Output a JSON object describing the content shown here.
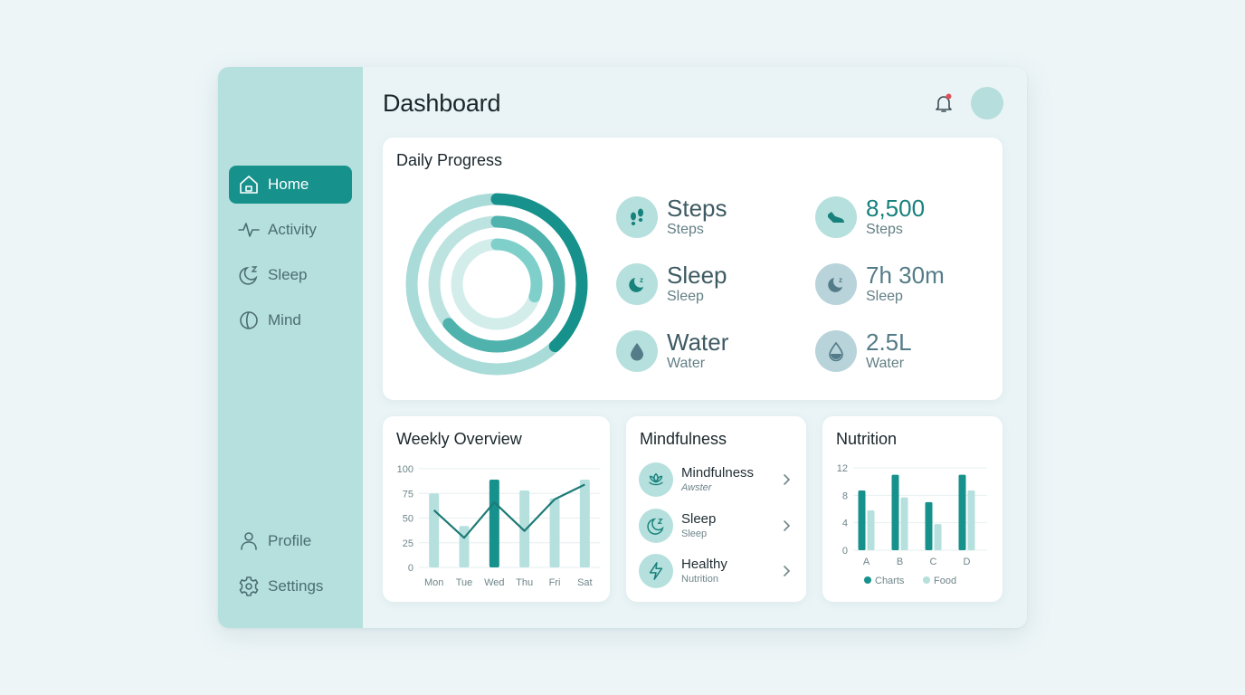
{
  "header": {
    "title": "Dashboard",
    "notification_badge_color": "#e0505a"
  },
  "sidebar": {
    "items": [
      {
        "label": "Home",
        "icon": "home-icon",
        "active": true
      },
      {
        "label": "Activity",
        "icon": "activity-icon",
        "active": false
      },
      {
        "label": "Sleep",
        "icon": "moon-icon",
        "active": false
      },
      {
        "label": "Mind",
        "icon": "brain-icon",
        "active": false
      }
    ],
    "bottom_items": [
      {
        "label": "Profile",
        "icon": "user-icon"
      },
      {
        "label": "Settings",
        "icon": "gear-icon"
      }
    ]
  },
  "daily_progress": {
    "title": "Daily Progress",
    "rings": [
      {
        "name": "outer",
        "percent": 38,
        "color": "#17918c",
        "track": "#a9dbd8"
      },
      {
        "name": "middle",
        "percent": 64,
        "color": "#4fb2ad",
        "track": "#bde3e0"
      },
      {
        "name": "inner",
        "percent": 30,
        "color": "#7fd0cb",
        "track": "#d3edeb"
      }
    ],
    "metrics_left": [
      {
        "title": "Steps",
        "subtitle": "Steps",
        "icon": "footprints-icon"
      },
      {
        "title": "Sleep",
        "subtitle": "Sleep",
        "icon": "moon-icon"
      },
      {
        "title": "Water",
        "subtitle": "Water",
        "icon": "water-drop-icon"
      }
    ],
    "metrics_right": [
      {
        "value": "8,500",
        "label": "Steps",
        "icon": "shoe-icon"
      },
      {
        "value": "7h 30m",
        "label": "Sleep",
        "icon": "moon-icon"
      },
      {
        "value": "2.5L",
        "label": "Water",
        "icon": "water-drop-icon"
      }
    ]
  },
  "weekly_overview": {
    "title": "Weekly Overview"
  },
  "mindfulness": {
    "title": "Mindfulness",
    "items": [
      {
        "title": "Mindfulness",
        "subtitle": "Awster",
        "icon": "lotus-icon"
      },
      {
        "title": "Sleep",
        "subtitle": "Sleep",
        "icon": "moon-icon"
      },
      {
        "title": "Healthy",
        "subtitle": "Nutrition",
        "icon": "lightning-icon"
      }
    ]
  },
  "nutrition": {
    "title": "Nutrition"
  },
  "chart_data": [
    {
      "id": "weekly",
      "type": "bar",
      "title": "Weekly Overview",
      "categories": [
        "Mon",
        "Tue",
        "Wed",
        "Thu",
        "Fri",
        "Sat"
      ],
      "series": [
        {
          "name": "bars",
          "type": "bar",
          "values": [
            75,
            42,
            89,
            78,
            70,
            89
          ],
          "highlight_index": 2
        },
        {
          "name": "trend",
          "type": "line",
          "values": [
            58,
            30,
            66,
            37,
            69,
            84
          ]
        }
      ],
      "yticks": [
        0,
        25,
        50,
        75,
        100
      ],
      "ylim": [
        0,
        100
      ],
      "grid": true
    },
    {
      "id": "nutrition",
      "type": "bar",
      "title": "Nutrition",
      "categories": [
        "A",
        "B",
        "C",
        "D"
      ],
      "series": [
        {
          "name": "Charts",
          "values": [
            8.7,
            11,
            7,
            11
          ],
          "color": "#17918c"
        },
        {
          "name": "Food",
          "values": [
            5.8,
            7.7,
            3.8,
            8.7
          ],
          "color": "#b6e0dd"
        }
      ],
      "yticks": [
        0,
        4,
        8,
        12
      ],
      "ylim": [
        0,
        12
      ],
      "grid": true,
      "legend_position": "bottom"
    }
  ]
}
